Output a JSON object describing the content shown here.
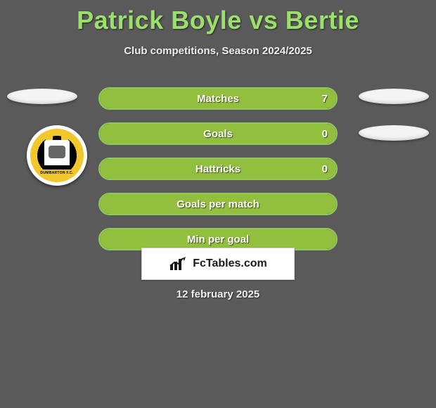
{
  "header": {
    "title": "Patrick Boyle vs Bertie",
    "title_color": "#9be06a",
    "subtitle": "Club competitions, Season 2024/2025"
  },
  "bars": {
    "border_color": "#8fc95e",
    "fill_color": "#93bf3f",
    "items": [
      {
        "label": "Matches",
        "value": "7",
        "fill_pct": 100
      },
      {
        "label": "Goals",
        "value": "0",
        "fill_pct": 100
      },
      {
        "label": "Hattricks",
        "value": "0",
        "fill_pct": 100
      },
      {
        "label": "Goals per match",
        "value": "",
        "fill_pct": 100
      },
      {
        "label": "Min per goal",
        "value": "",
        "fill_pct": 100
      }
    ]
  },
  "crest": {
    "banner_text": "DUMBARTON F.C.",
    "ring_color": "#f2c72b",
    "disc_color": "#000000"
  },
  "brand": {
    "text": "FcTables.com"
  },
  "date": "12 february 2025",
  "background_color": "#5a5a5a"
}
